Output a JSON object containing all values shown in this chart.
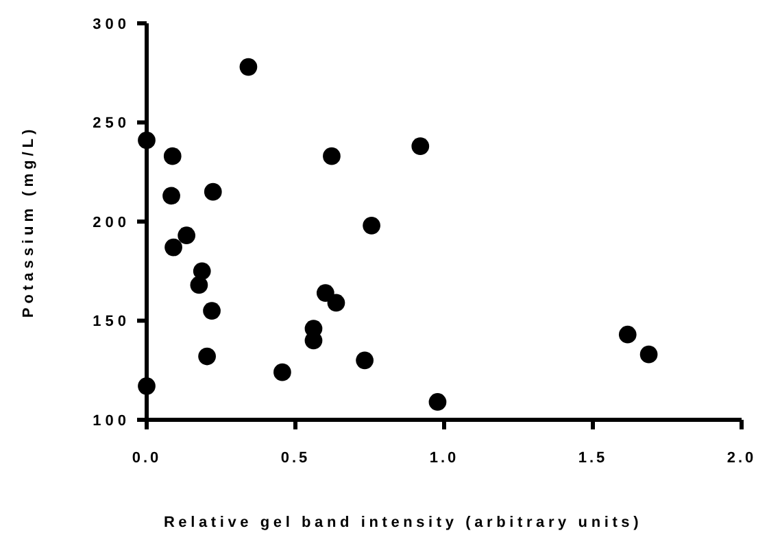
{
  "chart_data": {
    "type": "scatter",
    "xlabel": "Relative gel band intensity (arbitrary units)",
    "ylabel": "Potassium (mg/L)",
    "x": [
      0.342,
      0,
      0.087,
      0.622,
      0.223,
      0.083,
      0.756,
      0.134,
      0.09,
      0.186,
      0.176,
      0.601,
      0.637,
      0.219,
      0.561,
      0.561,
      0.203,
      0.733,
      0.456,
      0,
      0.92,
      0.978,
      1.617,
      1.688
    ],
    "values": [
      278,
      241,
      233,
      233,
      215,
      213,
      198,
      193,
      187,
      175,
      168,
      164,
      159,
      155,
      146,
      140,
      132,
      130,
      124,
      117,
      238,
      109,
      143,
      133
    ],
    "color": "#000000",
    "marker": "circle",
    "xlim": [
      0,
      2
    ],
    "ylim": [
      100,
      300
    ],
    "xticks": [
      {
        "value": 0,
        "label": "0.0"
      },
      {
        "value": 0.5,
        "label": "0.5"
      },
      {
        "value": 1,
        "label": "1.0"
      },
      {
        "value": 1.5,
        "label": "1.5"
      },
      {
        "value": 2,
        "label": "2.0"
      }
    ],
    "yticks": [
      100,
      150,
      200,
      250,
      300
    ]
  }
}
